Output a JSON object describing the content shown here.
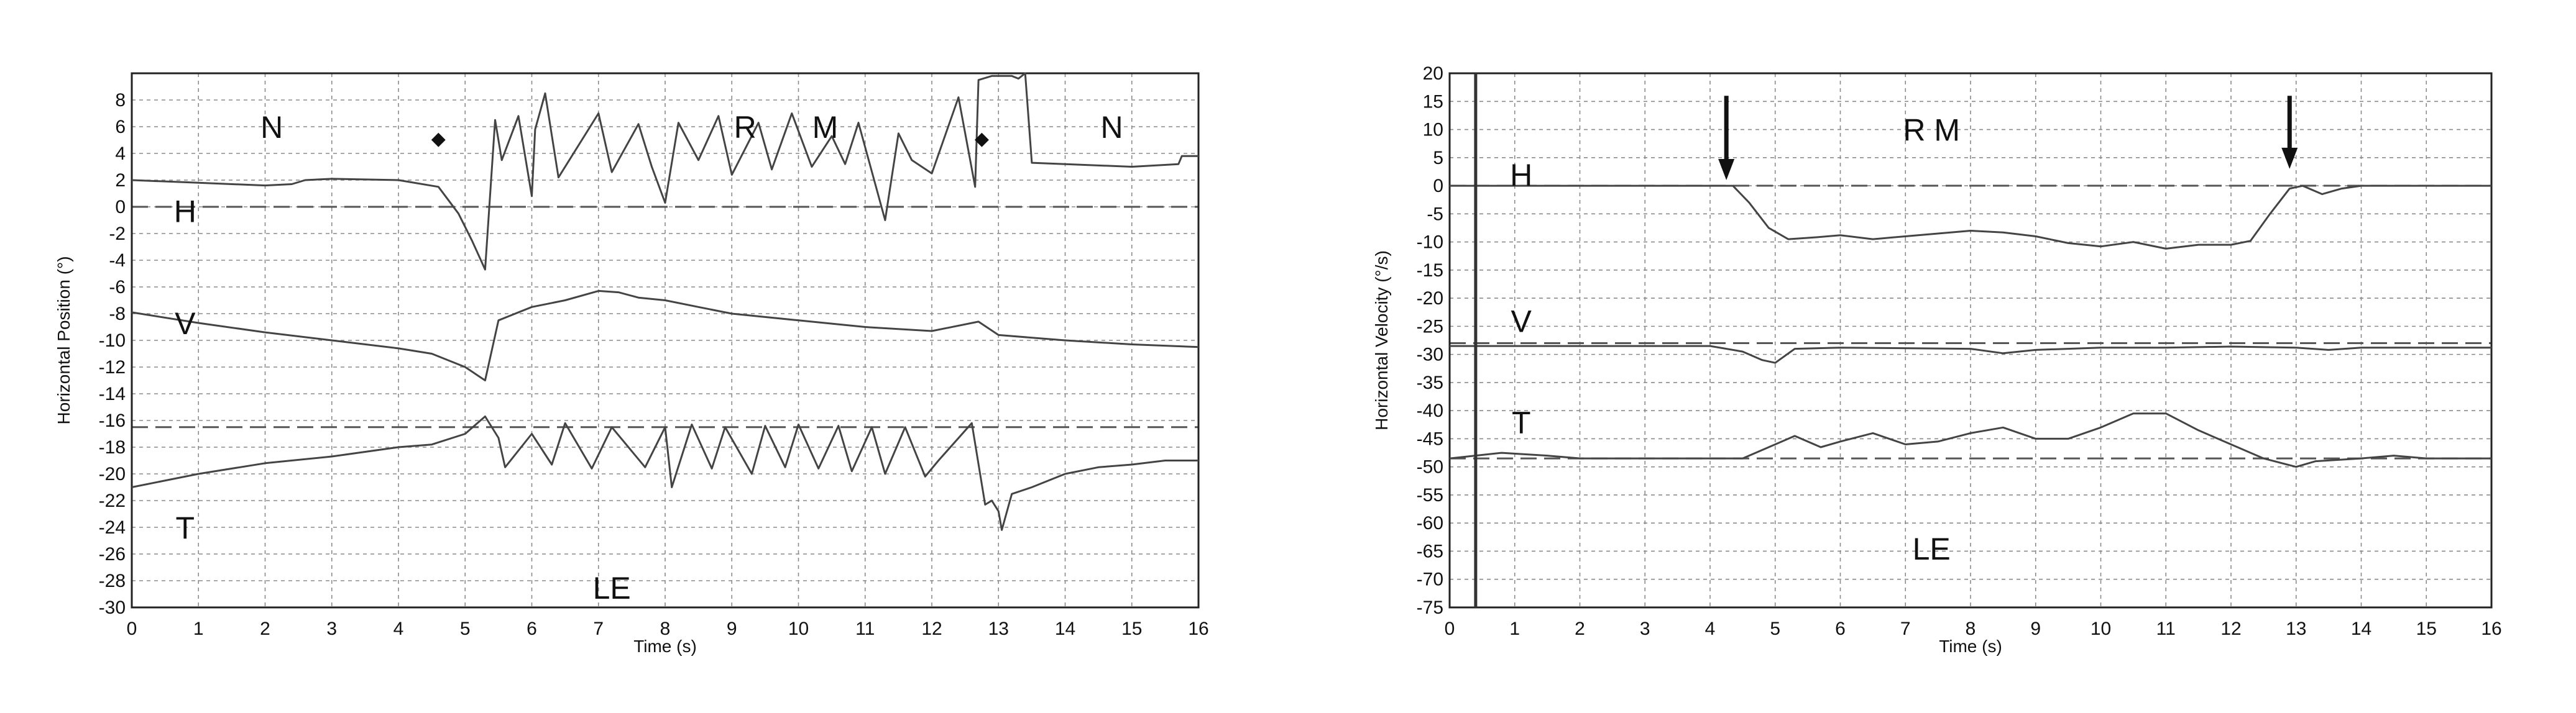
{
  "chart_data": [
    {
      "type": "line",
      "title": "",
      "xlabel": "Time (s)",
      "ylabel": "Horizontal Position (°)",
      "xlim": [
        0,
        16
      ],
      "ylim": [
        -30,
        10
      ],
      "x_ticks": [
        0,
        1,
        2,
        3,
        4,
        5,
        6,
        7,
        8,
        9,
        10,
        11,
        12,
        13,
        14,
        15,
        16
      ],
      "y_ticks": [
        8,
        6,
        4,
        2,
        0,
        -2,
        -4,
        -6,
        -8,
        -10,
        -12,
        -14,
        -16,
        -18,
        -20,
        -22,
        -24,
        -26,
        -28,
        -30
      ],
      "grid": true,
      "baselines": [
        0,
        -16.5
      ],
      "annotations": [
        {
          "text": "N",
          "x": 2.1,
          "y": 6
        },
        {
          "text": "R",
          "x": 9.2,
          "y": 6
        },
        {
          "text": "M",
          "x": 10.4,
          "y": 6
        },
        {
          "text": "N",
          "x": 14.7,
          "y": 6
        },
        {
          "text": "H",
          "x": 0.8,
          "y": -0.3
        },
        {
          "text": "V",
          "x": 0.8,
          "y": -8.7
        },
        {
          "text": "T",
          "x": 0.8,
          "y": -24
        },
        {
          "text": "LE",
          "x": 7.2,
          "y": -28.5
        }
      ],
      "markers": [
        {
          "symbol": "◆",
          "x": 4.6,
          "y": 5.2
        },
        {
          "symbol": "◆",
          "x": 12.75,
          "y": 5.2
        }
      ],
      "series": [
        {
          "x": [
            0,
            1,
            2,
            2.4,
            2.6,
            3,
            4,
            4.6,
            4.9,
            5.1,
            5.3,
            5.45,
            5.55,
            5.8,
            6.0,
            6.05,
            6.2,
            6.4,
            7.0,
            7.2,
            7.6,
            7.8,
            8.0,
            8.2,
            8.5,
            8.8,
            9.0,
            9.4,
            9.6,
            9.9,
            10.2,
            10.5,
            10.7,
            10.9,
            11.3,
            11.5,
            11.7,
            12.0,
            12.4,
            12.65,
            12.7,
            12.9,
            13.2,
            13.3,
            13.4,
            13.5,
            14,
            15,
            15.7,
            15.75,
            16
          ],
          "y": [
            2,
            1.8,
            1.6,
            1.7,
            2.0,
            2.1,
            2.0,
            1.5,
            -0.5,
            -2.5,
            -4.7,
            6.5,
            3.5,
            6.8,
            0.8,
            5.8,
            8.5,
            2.2,
            7.0,
            2.6,
            6.2,
            3.0,
            0.3,
            6.3,
            3.5,
            6.8,
            2.4,
            6.3,
            2.8,
            7.0,
            3.0,
            5.3,
            3.2,
            6.3,
            -1.0,
            5.5,
            3.5,
            2.5,
            8.2,
            1.5,
            9.5,
            9.8,
            9.8,
            9.6,
            10.0,
            3.3,
            3.2,
            3.0,
            3.2,
            3.8,
            3.8
          ],
          "stroke": "#444444"
        },
        {
          "x": [
            0,
            1,
            2,
            3,
            4,
            4.5,
            5.0,
            5.3,
            5.5,
            6.0,
            6.5,
            7.0,
            7.3,
            7.6,
            8.0,
            8.5,
            9.0,
            10.0,
            11.0,
            12.0,
            12.7,
            13.0,
            14.0,
            15.0,
            16.0
          ],
          "y": [
            -7.9,
            -8.7,
            -9.4,
            -10.0,
            -10.6,
            -11.0,
            -12.0,
            -13.0,
            -8.5,
            -7.5,
            -7.0,
            -6.3,
            -6.4,
            -6.8,
            -7.0,
            -7.5,
            -8.0,
            -8.5,
            -9.0,
            -9.3,
            -8.6,
            -9.6,
            -10.0,
            -10.3,
            -10.5
          ],
          "stroke": "#555555"
        },
        {
          "x": [
            0,
            1,
            2,
            3,
            4,
            4.5,
            5.0,
            5.3,
            5.5,
            5.6,
            6.0,
            6.3,
            6.5,
            6.9,
            7.2,
            7.7,
            8.0,
            8.1,
            8.4,
            8.7,
            8.9,
            9.3,
            9.5,
            9.8,
            10.0,
            10.3,
            10.6,
            10.8,
            11.1,
            11.3,
            11.6,
            11.9,
            12.1,
            12.6,
            12.8,
            12.9,
            13.0,
            13.05,
            13.2,
            13.5,
            14.0,
            14.5,
            15.0,
            15.5,
            16.0
          ],
          "y": [
            -21,
            -20,
            -19.2,
            -18.7,
            -18.0,
            -17.8,
            -17.0,
            -15.7,
            -17.3,
            -19.5,
            -17.0,
            -19.3,
            -16.2,
            -19.6,
            -16.5,
            -19.5,
            -16.5,
            -21.0,
            -16.3,
            -19.6,
            -16.5,
            -20.0,
            -16.4,
            -19.5,
            -16.3,
            -19.6,
            -16.4,
            -19.8,
            -16.5,
            -20.0,
            -16.5,
            -20.2,
            -19.0,
            -16.2,
            -22.3,
            -22.0,
            -22.8,
            -24.2,
            -21.5,
            -21.0,
            -20.0,
            -19.5,
            -19.3,
            -19.0,
            -19.0
          ],
          "stroke": "#333333"
        }
      ]
    },
    {
      "type": "line",
      "title": "",
      "xlabel": "Time (s)",
      "ylabel": "Horizontal Velocity (°/s)",
      "xlim": [
        0,
        16
      ],
      "ylim": [
        -75,
        20
      ],
      "x_ticks": [
        0,
        1,
        2,
        3,
        4,
        5,
        6,
        7,
        8,
        9,
        10,
        11,
        12,
        13,
        14,
        15,
        16
      ],
      "y_ticks": [
        20,
        15,
        10,
        5,
        0,
        -5,
        -10,
        -15,
        -20,
        -25,
        -30,
        -35,
        -40,
        -45,
        -50,
        -55,
        -60,
        -65,
        -70,
        -75
      ],
      "grid": true,
      "baselines": [
        0,
        -28,
        -48.5
      ],
      "annotations": [
        {
          "text": "R M",
          "x": 7.4,
          "y": 10
        },
        {
          "text": "H",
          "x": 1.1,
          "y": 2
        },
        {
          "text": "V",
          "x": 1.1,
          "y": -24
        },
        {
          "text": "T",
          "x": 1.1,
          "y": -42
        },
        {
          "text": "LE",
          "x": 7.4,
          "y": -64.5
        }
      ],
      "arrows": [
        {
          "x": 4.25,
          "y_from": 16,
          "y_to": 1
        },
        {
          "x": 12.9,
          "y_from": 16,
          "y_to": 3
        }
      ],
      "series": [
        {
          "x": [
            0,
            1,
            2,
            3,
            4,
            4.35,
            4.6,
            4.9,
            5.2,
            5.6,
            6.0,
            6.5,
            7.0,
            7.5,
            8.0,
            8.5,
            9.0,
            9.5,
            10.0,
            10.5,
            11.0,
            11.5,
            12.0,
            12.3,
            12.6,
            12.9,
            13.1,
            13.4,
            13.7,
            14.0,
            15.0,
            16.0
          ],
          "y": [
            0,
            0,
            0,
            0,
            0,
            0,
            -3,
            -7.5,
            -9.5,
            -9.2,
            -8.8,
            -9.5,
            -9.0,
            -8.5,
            -8.0,
            -8.3,
            -9.0,
            -10.2,
            -10.8,
            -10.0,
            -11.2,
            -10.5,
            -10.5,
            -9.8,
            -5,
            -0.5,
            0,
            -1.5,
            -0.5,
            0,
            0,
            0
          ],
          "stroke": "#555555"
        },
        {
          "x": [
            0,
            1,
            2,
            3,
            4,
            4.5,
            4.8,
            5.0,
            5.3,
            6.0,
            8.0,
            8.5,
            9.0,
            10.0,
            11.0,
            12.0,
            13.0,
            13.5,
            14.0,
            16.0
          ],
          "y": [
            -28.5,
            -28.5,
            -28.5,
            -28.5,
            -28.5,
            -29.5,
            -31.0,
            -31.5,
            -29.0,
            -28.8,
            -29.0,
            -29.8,
            -29.2,
            -28.8,
            -28.8,
            -28.6,
            -28.8,
            -29.2,
            -28.8,
            -28.8
          ],
          "stroke": "#333333"
        },
        {
          "x": [
            0,
            0.8,
            1.5,
            2,
            3,
            4,
            4.5,
            5.0,
            5.3,
            5.7,
            6.0,
            6.5,
            7.0,
            7.5,
            8.0,
            8.5,
            9.0,
            9.5,
            10.0,
            10.5,
            11.0,
            11.5,
            12.0,
            12.5,
            13.0,
            13.3,
            14.0,
            14.5,
            15.0,
            16.0
          ],
          "y": [
            -48.5,
            -47.5,
            -48.0,
            -48.5,
            -48.5,
            -48.5,
            -48.5,
            -46.0,
            -44.5,
            -46.5,
            -45.5,
            -44.0,
            -46.0,
            -45.5,
            -44.0,
            -43.0,
            -45.0,
            -45.0,
            -43.0,
            -40.5,
            -40.5,
            -43.5,
            -46.0,
            -48.5,
            -50.0,
            -49.0,
            -48.5,
            -48.0,
            -48.5,
            -48.5
          ],
          "stroke": "#666666"
        }
      ]
    }
  ]
}
